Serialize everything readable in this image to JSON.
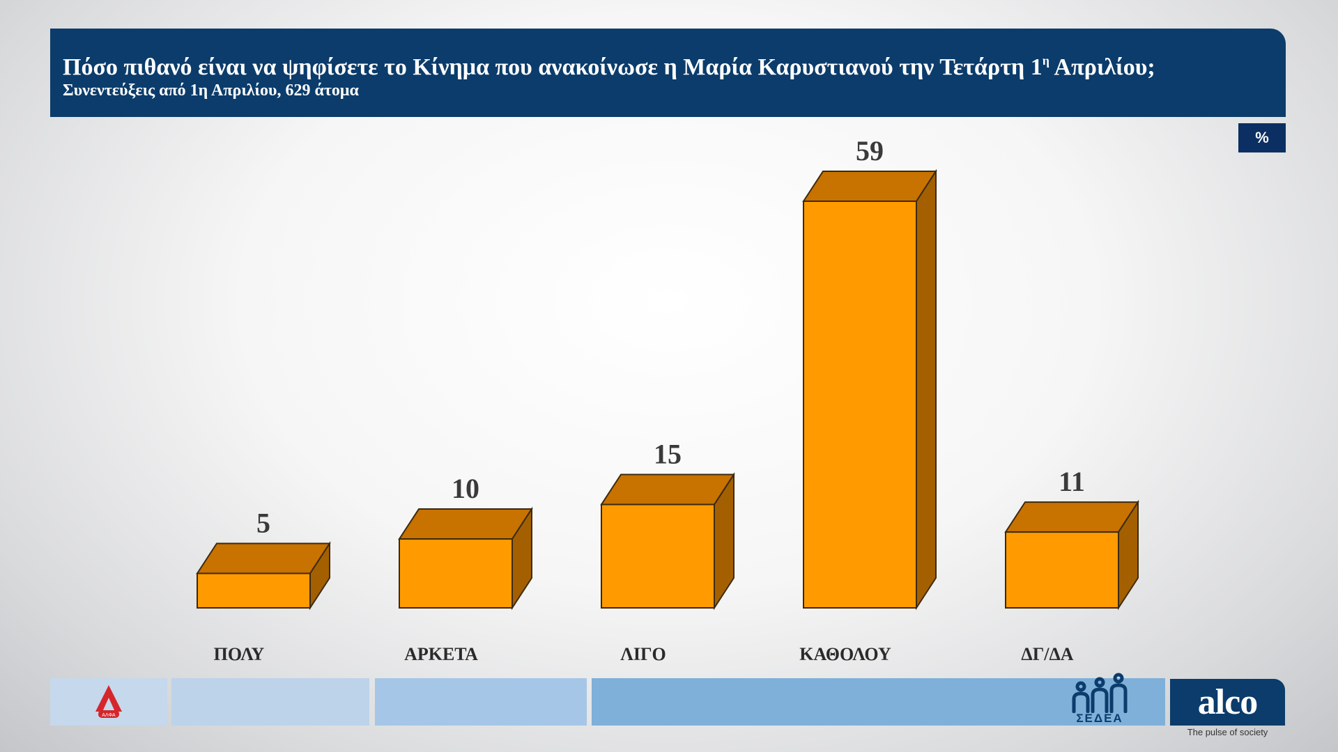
{
  "header": {
    "title_main": "Πόσο πιθανό είναι να ψηφίσετε το Κίνημα που ανακοίνωσε η Μαρία Καρυστιανού την Τετάρτη 1",
    "title_sup": "η",
    "title_end": " Απριλίου;",
    "subtitle": "Συνεντεύξεις από 1η Απριλίου, 629 άτομα"
  },
  "unit_badge": "%",
  "chart_data": {
    "type": "bar",
    "title": "Πόσο πιθανό είναι να ψηφίσετε το Κίνημα που ανακοίνωσε η Μαρία Καρυστιανού την Τετάρτη 1η Απριλίου;",
    "subtitle": "Συνεντεύξεις από 1η Απριλίου, 629 άτομα",
    "unit": "%",
    "categories": [
      "ΠΟΛΥ",
      "ΑΡΚΕΤΑ",
      "ΛΙΓΟ",
      "ΚΑΘΟΛΟΥ",
      "ΔΓ/ΔΑ"
    ],
    "values": [
      5,
      10,
      15,
      59,
      11
    ],
    "ylim": [
      0,
      59
    ],
    "grid": false,
    "style": "3d",
    "colors": {
      "front": "#ff9b00",
      "top": "#c87200",
      "side": "#a46000",
      "edge": "#3c2a10"
    }
  },
  "footer": {
    "sedea_text": "ΣΕΔΕΑ",
    "alco_logo": "alco",
    "alco_tagline": "The pulse of society",
    "alpha_logo_label": "ΑΛΦΑ"
  }
}
